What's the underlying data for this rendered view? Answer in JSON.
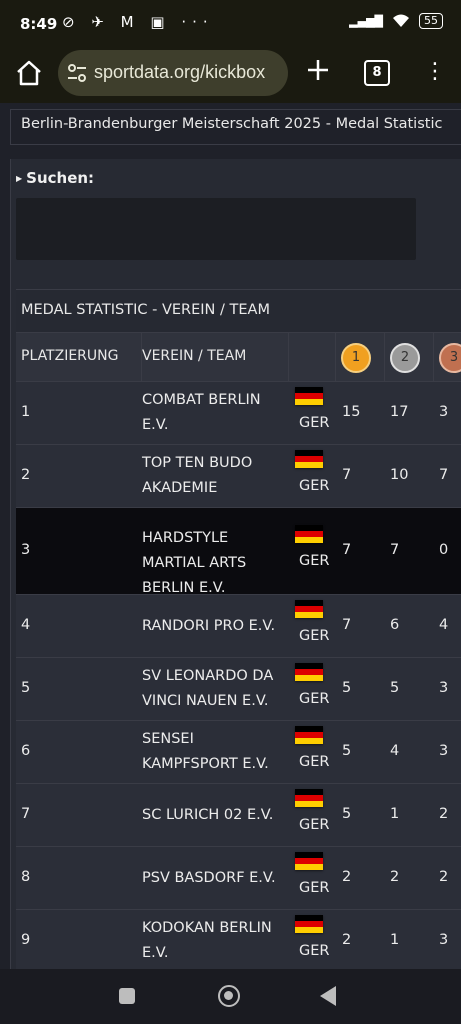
{
  "status": {
    "time": "8:49",
    "notification_icons": "⊘ ✈ M ▣ ···",
    "signal": "▂▄▆█",
    "wifi": "wifi",
    "battery": "55"
  },
  "browser": {
    "url": "sportdata.org/kickbox",
    "tab_count": "8"
  },
  "page": {
    "title": "Berlin-Brandenburger Meisterschaft 2025 - Medal Statistic",
    "search_label": "Suchen:",
    "search_value": "",
    "table": {
      "title": "MEDAL STATISTIC - VEREIN / TEAM",
      "headers": {
        "rank": "PLATZIERUNG",
        "club": "VEREIN / TEAM",
        "gold": "1",
        "silver": "2",
        "bronze": "3"
      },
      "rows": [
        {
          "rank": "1",
          "club": "COMBAT BERLIN E.V.",
          "nation": "GER",
          "gold": "15",
          "silver": "17",
          "bronze": "3"
        },
        {
          "rank": "2",
          "club": "TOP TEN BUDO AKADEMIE",
          "nation": "GER",
          "gold": "7",
          "silver": "10",
          "bronze": "7"
        },
        {
          "rank": "3",
          "club": "HARDSTYLE MARTIAL ARTS BERLIN E.V.",
          "nation": "GER",
          "gold": "7",
          "silver": "7",
          "bronze": "0"
        },
        {
          "rank": "4",
          "club": "RANDORI PRO E.V.",
          "nation": "GER",
          "gold": "7",
          "silver": "6",
          "bronze": "4"
        },
        {
          "rank": "5",
          "club": "SV LEONARDO DA VINCI NAUEN E.V.",
          "nation": "GER",
          "gold": "5",
          "silver": "5",
          "bronze": "3"
        },
        {
          "rank": "6",
          "club": "SENSEI KAMPFSPORT E.V.",
          "nation": "GER",
          "gold": "5",
          "silver": "4",
          "bronze": "3"
        },
        {
          "rank": "7",
          "club": "SC LURICH 02 E.V.",
          "nation": "GER",
          "gold": "5",
          "silver": "1",
          "bronze": "2"
        },
        {
          "rank": "8",
          "club": "PSV BASDORF E.V.",
          "nation": "GER",
          "gold": "2",
          "silver": "2",
          "bronze": "2"
        },
        {
          "rank": "9",
          "club": "KODOKAN BERLIN E.V.",
          "nation": "GER",
          "gold": "2",
          "silver": "1",
          "bronze": "3"
        }
      ]
    }
  },
  "colors": {
    "gold": "#f0a020",
    "silver": "#9a9a9a",
    "bronze": "#c07050",
    "flag": [
      "#000000",
      "#dd0000",
      "#ffce00"
    ]
  }
}
